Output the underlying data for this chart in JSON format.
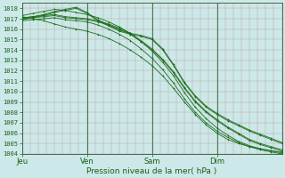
{
  "title": "",
  "xlabel": "Pression niveau de la mer( hPa )",
  "ylabel": "",
  "bg_color": "#cce8e8",
  "line_color": "#1a6e1a",
  "ylim": [
    1004,
    1018.5
  ],
  "xlim": [
    0,
    96
  ],
  "day_ticks": [
    0,
    24,
    48,
    72
  ],
  "day_labels": [
    "Jeu",
    "Ven",
    "Sam",
    "Dim"
  ],
  "yticks": [
    1004,
    1005,
    1006,
    1007,
    1008,
    1009,
    1010,
    1011,
    1012,
    1013,
    1014,
    1015,
    1016,
    1017,
    1018
  ],
  "lines": [
    {
      "x": [
        0,
        4,
        8,
        12,
        16,
        20,
        24,
        28,
        32,
        36,
        40,
        44,
        48,
        52,
        56,
        60,
        64,
        68,
        72,
        76,
        80,
        84,
        88,
        92,
        96
      ],
      "y": [
        1017.0,
        1017.1,
        1017.2,
        1017.3,
        1017.1,
        1017.0,
        1016.9,
        1016.7,
        1016.4,
        1016.0,
        1015.5,
        1014.8,
        1014.0,
        1013.0,
        1011.8,
        1010.3,
        1009.0,
        1008.0,
        1007.2,
        1006.5,
        1005.9,
        1005.3,
        1004.9,
        1004.6,
        1004.3
      ]
    },
    {
      "x": [
        0,
        4,
        8,
        12,
        16,
        20,
        24,
        28,
        32,
        36,
        40,
        44,
        48,
        52,
        56,
        60,
        64,
        68,
        72,
        76,
        80,
        84,
        88,
        92,
        96
      ],
      "y": [
        1017.1,
        1017.2,
        1017.3,
        1017.4,
        1017.2,
        1017.1,
        1017.0,
        1016.8,
        1016.5,
        1016.1,
        1015.6,
        1014.9,
        1014.1,
        1013.1,
        1011.9,
        1010.4,
        1009.1,
        1008.1,
        1007.3,
        1006.6,
        1006.0,
        1005.4,
        1005.0,
        1004.7,
        1004.4
      ]
    },
    {
      "x": [
        0,
        4,
        8,
        12,
        16,
        20,
        24,
        28,
        32,
        36,
        40,
        44,
        48,
        52,
        56,
        60,
        64,
        68,
        72,
        76,
        80,
        84,
        88,
        92,
        96
      ],
      "y": [
        1016.8,
        1016.9,
        1017.0,
        1017.1,
        1016.9,
        1016.8,
        1016.7,
        1016.4,
        1016.0,
        1015.5,
        1014.9,
        1014.1,
        1013.2,
        1012.1,
        1010.8,
        1009.3,
        1008.0,
        1007.0,
        1006.2,
        1005.6,
        1005.1,
        1004.7,
        1004.4,
        1004.2,
        1004.0
      ]
    },
    {
      "x": [
        0,
        4,
        8,
        12,
        16,
        20,
        24,
        28,
        32,
        36,
        40,
        44,
        48,
        52,
        56,
        60,
        64,
        68,
        72,
        76,
        80,
        84,
        88,
        92,
        96
      ],
      "y": [
        1017.3,
        1017.5,
        1017.7,
        1017.9,
        1017.8,
        1017.6,
        1017.4,
        1017.1,
        1016.7,
        1016.2,
        1015.6,
        1014.8,
        1013.9,
        1012.8,
        1011.5,
        1009.9,
        1008.5,
        1007.4,
        1006.5,
        1005.8,
        1005.2,
        1004.8,
        1004.5,
        1004.3,
        1004.1
      ]
    },
    {
      "x": [
        0,
        4,
        8,
        12,
        16,
        20,
        24,
        28,
        32,
        36,
        40,
        44,
        48,
        52,
        56,
        60,
        64,
        68,
        72,
        76,
        80,
        84,
        88,
        92,
        96
      ],
      "y": [
        1016.9,
        1017.1,
        1017.3,
        1017.6,
        1017.8,
        1018.0,
        1017.5,
        1016.8,
        1016.3,
        1015.8,
        1015.5,
        1015.3,
        1015.0,
        1014.0,
        1012.5,
        1010.8,
        1009.5,
        1008.5,
        1007.8,
        1007.2,
        1006.7,
        1006.2,
        1005.8,
        1005.4,
        1005.0
      ]
    },
    {
      "x": [
        0,
        4,
        8,
        12,
        16,
        20,
        24,
        28,
        32,
        36,
        40,
        44,
        48,
        52,
        56,
        60,
        64,
        68,
        72,
        76,
        80,
        84,
        88,
        92,
        96
      ],
      "y": [
        1017.0,
        1017.2,
        1017.4,
        1017.7,
        1017.9,
        1018.1,
        1017.6,
        1016.9,
        1016.4,
        1015.9,
        1015.6,
        1015.4,
        1015.1,
        1014.1,
        1012.6,
        1010.9,
        1009.6,
        1008.6,
        1007.9,
        1007.3,
        1006.8,
        1006.3,
        1005.9,
        1005.5,
        1005.1
      ]
    },
    {
      "x": [
        0,
        4,
        8,
        12,
        16,
        20,
        24,
        28,
        32,
        36,
        40,
        44,
        48,
        52,
        56,
        60,
        64,
        68,
        72,
        76,
        80,
        84,
        88,
        92,
        96
      ],
      "y": [
        1017.2,
        1017.0,
        1016.8,
        1016.5,
        1016.2,
        1016.0,
        1015.8,
        1015.5,
        1015.1,
        1014.6,
        1014.0,
        1013.3,
        1012.5,
        1011.5,
        1010.3,
        1009.0,
        1007.8,
        1006.8,
        1006.0,
        1005.4,
        1005.0,
        1004.7,
        1004.5,
        1004.3,
        1004.2
      ]
    }
  ]
}
